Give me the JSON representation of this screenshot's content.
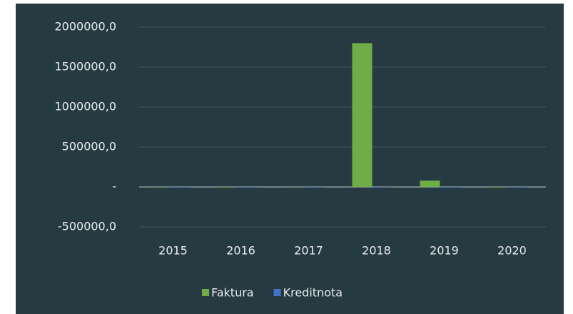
{
  "chart_data": {
    "type": "bar",
    "categories": [
      "2015",
      "2016",
      "2017",
      "2018",
      "2019",
      "2020"
    ],
    "series": [
      {
        "name": "Faktura",
        "color": "#70ad47",
        "values": [
          0,
          0,
          0,
          1800000,
          80000,
          0
        ]
      },
      {
        "name": "Kreditnota",
        "color": "#4472c4",
        "values": [
          0,
          0,
          0,
          0,
          -5000,
          0
        ]
      }
    ],
    "ylim": [
      -500000,
      2000000
    ],
    "yticks": [
      {
        "value": -500000,
        "label": "-500000,0"
      },
      {
        "value": 0,
        "label": "-"
      },
      {
        "value": 500000,
        "label": "500000,0"
      },
      {
        "value": 1000000,
        "label": "1000000,0"
      },
      {
        "value": 1500000,
        "label": "1500000,0"
      },
      {
        "value": 2000000,
        "label": "2000000,0"
      }
    ],
    "grid": true,
    "legend": "bottom"
  }
}
